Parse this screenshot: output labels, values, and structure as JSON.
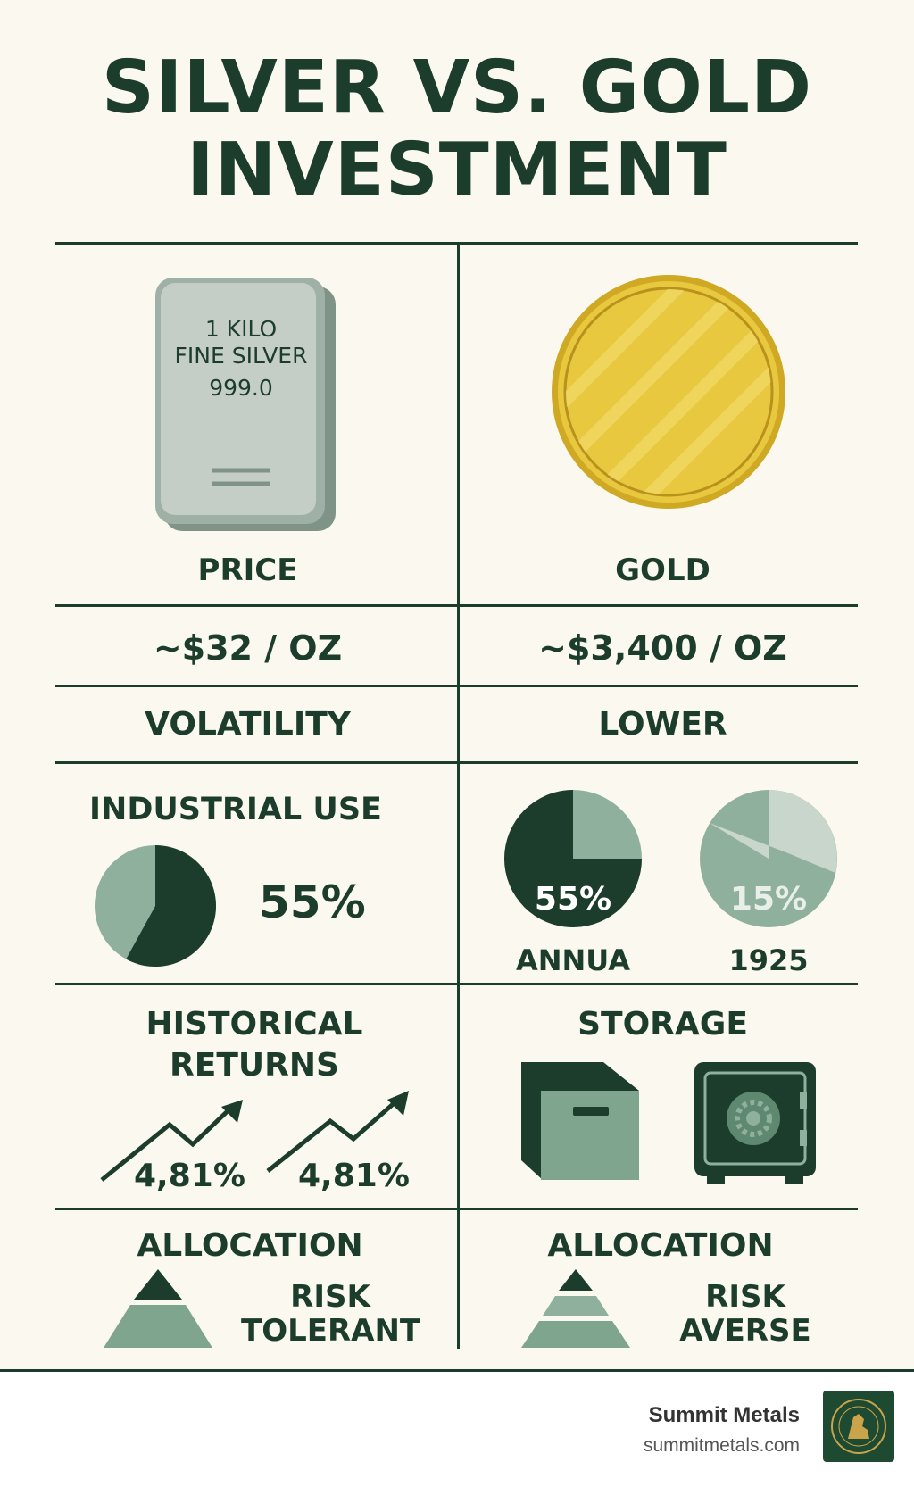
{
  "title": {
    "line1": "SILVER VS. GOLD",
    "line2": "INVESTMENT"
  },
  "silver_bar": {
    "line1": "1 KILO",
    "line2": "FINE SILVER",
    "line3": "999.0"
  },
  "rows": {
    "heading_left": "PRICE",
    "heading_right": "GOLD",
    "price_left": "~$32 / OZ",
    "price_right": "~$3,400 / OZ",
    "volatility_left": "VOLATILITY",
    "volatility_right": "LOWER"
  },
  "industrial": {
    "label": "INDUSTRIAL USE",
    "value": "55%",
    "pie_left_fraction": 0.58,
    "pie_a": {
      "value": "55%",
      "caption": "ANNUA",
      "dark_fraction": 0.75
    },
    "pie_b": {
      "value": "15%",
      "caption": "1925",
      "light_fraction": 0.3
    }
  },
  "historical": {
    "label_line1": "HISTORICAL",
    "label_line2": "RETURNS",
    "value_a": "4,81%",
    "value_b": "4,81%"
  },
  "storage": {
    "label": "STORAGE"
  },
  "allocation": {
    "left_label": "ALLOCATION",
    "left_line1": "RISK",
    "left_line2": "TOLERANT",
    "right_label": "ALLOCATION",
    "right_line1": "RISK",
    "right_line2": "AVERSE"
  },
  "footer": {
    "brand": "Summit Metals",
    "url": "summitmetals.com"
  },
  "colors": {
    "dark_green": "#1d3d2c",
    "mid_green": "#7fa58e",
    "light_green": "#c9d6cc",
    "gold": "#e8c83e",
    "silver": "#c5cdc7",
    "background": "#fbf8f0"
  }
}
